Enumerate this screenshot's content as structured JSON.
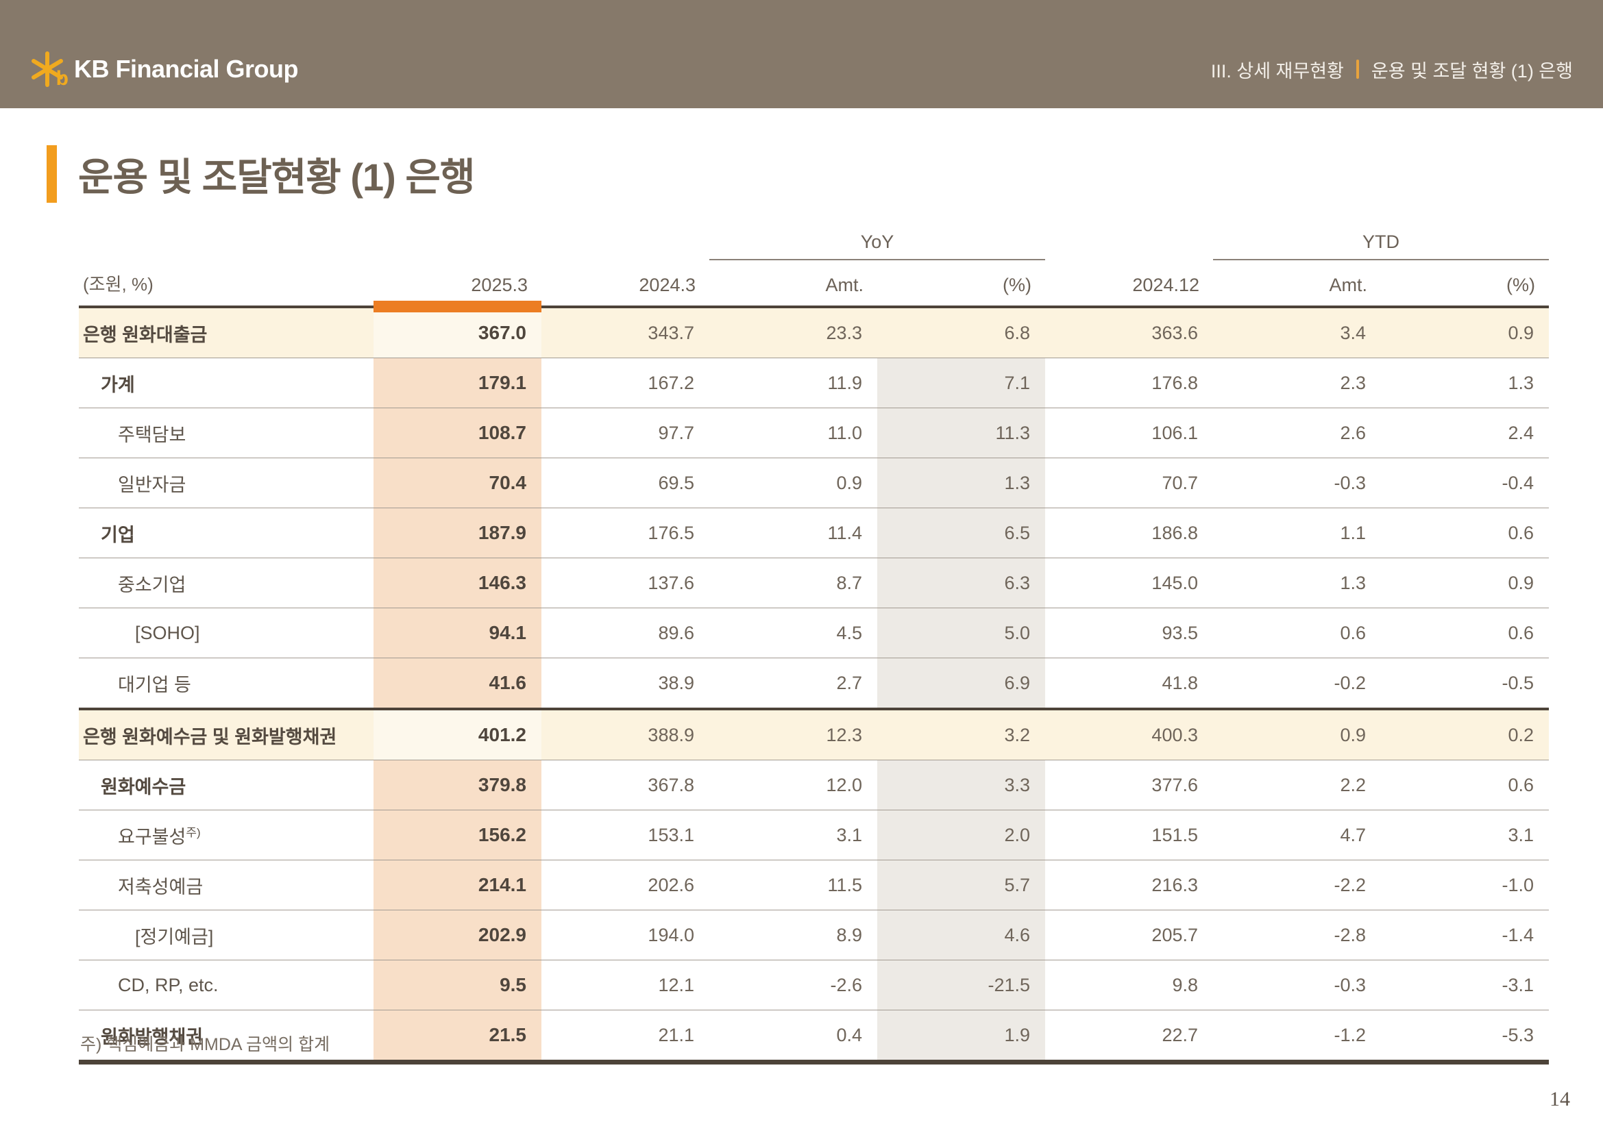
{
  "topbar": {
    "logo_text": "KB Financial Group",
    "breadcrumb": {
      "section": "III. 상세 재무현황",
      "page": "운용 및 조달 현황 (1) 은행"
    }
  },
  "title": "운용 및 조달현황 (1) 은행",
  "table": {
    "unit_label": "(조원, %)",
    "group_headers": {
      "yoy": "YoY",
      "ytd": "YTD"
    },
    "col_headers": [
      "2025.3",
      "2024.3",
      "Amt.",
      "(%)",
      "2024.12",
      "Amt.",
      "(%)"
    ],
    "rows": [
      {
        "label": "은행 원화대출금",
        "indent": 0,
        "bold": true,
        "section": true,
        "values": [
          "367.0",
          "343.7",
          "23.3",
          "6.8",
          "363.6",
          "3.4",
          "0.9"
        ]
      },
      {
        "label": "가계",
        "indent": 1,
        "bold": true,
        "section": false,
        "values": [
          "179.1",
          "167.2",
          "11.9",
          "7.1",
          "176.8",
          "2.3",
          "1.3"
        ]
      },
      {
        "label": "주택담보",
        "indent": 2,
        "bold": false,
        "section": false,
        "values": [
          "108.7",
          "97.7",
          "11.0",
          "11.3",
          "106.1",
          "2.6",
          "2.4"
        ]
      },
      {
        "label": "일반자금",
        "indent": 2,
        "bold": false,
        "section": false,
        "values": [
          "70.4",
          "69.5",
          "0.9",
          "1.3",
          "70.7",
          "-0.3",
          "-0.4"
        ]
      },
      {
        "label": "기업",
        "indent": 1,
        "bold": true,
        "section": false,
        "values": [
          "187.9",
          "176.5",
          "11.4",
          "6.5",
          "186.8",
          "1.1",
          "0.6"
        ]
      },
      {
        "label": "중소기업",
        "indent": 2,
        "bold": false,
        "section": false,
        "values": [
          "146.3",
          "137.6",
          "8.7",
          "6.3",
          "145.0",
          "1.3",
          "0.9"
        ]
      },
      {
        "label": "[SOHO]",
        "indent": 3,
        "bold": false,
        "section": false,
        "values": [
          "94.1",
          "89.6",
          "4.5",
          "5.0",
          "93.5",
          "0.6",
          "0.6"
        ]
      },
      {
        "label": "대기업 등",
        "indent": 2,
        "bold": false,
        "section": false,
        "values": [
          "41.6",
          "38.9",
          "2.7",
          "6.9",
          "41.8",
          "-0.2",
          "-0.5"
        ]
      },
      {
        "label": "은행 원화예수금 및 원화발행채권",
        "indent": 0,
        "bold": true,
        "section": true,
        "values": [
          "401.2",
          "388.9",
          "12.3",
          "3.2",
          "400.3",
          "0.9",
          "0.2"
        ]
      },
      {
        "label": "원화예수금",
        "indent": 1,
        "bold": true,
        "section": false,
        "values": [
          "379.8",
          "367.8",
          "12.0",
          "3.3",
          "377.6",
          "2.2",
          "0.6"
        ]
      },
      {
        "label": "요구불성",
        "sup": "주)",
        "indent": 2,
        "bold": false,
        "section": false,
        "values": [
          "156.2",
          "153.1",
          "3.1",
          "2.0",
          "151.5",
          "4.7",
          "3.1"
        ]
      },
      {
        "label": "저축성예금",
        "indent": 2,
        "bold": false,
        "section": false,
        "values": [
          "214.1",
          "202.6",
          "11.5",
          "5.7",
          "216.3",
          "-2.2",
          "-1.0"
        ]
      },
      {
        "label": "[정기예금]",
        "indent": 3,
        "bold": false,
        "section": false,
        "values": [
          "202.9",
          "194.0",
          "8.9",
          "4.6",
          "205.7",
          "-2.8",
          "-1.4"
        ]
      },
      {
        "label": "CD, RP, etc.",
        "indent": 2,
        "bold": false,
        "section": false,
        "values": [
          "9.5",
          "12.1",
          "-2.6",
          "-21.5",
          "9.8",
          "-0.3",
          "-3.1"
        ]
      },
      {
        "label": "원화발행채권",
        "indent": 1,
        "bold": true,
        "section": false,
        "values": [
          "21.5",
          "21.1",
          "0.4",
          "1.9",
          "22.7",
          "-1.2",
          "-5.3"
        ]
      }
    ]
  },
  "footnote": "주) 핵심예금과 MMDA 금액의 합계",
  "page_number": "14",
  "colors": {
    "topbar_background": "#86796a",
    "accent_orange": "#ec7d23",
    "accent_orange_text": "#e0782a",
    "logo_gold": "#f0aa1f",
    "section_row_cream": "#fcf3df",
    "current_column_peach": "#f8dfc8",
    "yoy_pct_column_gray": "#edeae5",
    "dark_border": "#4d4339"
  }
}
